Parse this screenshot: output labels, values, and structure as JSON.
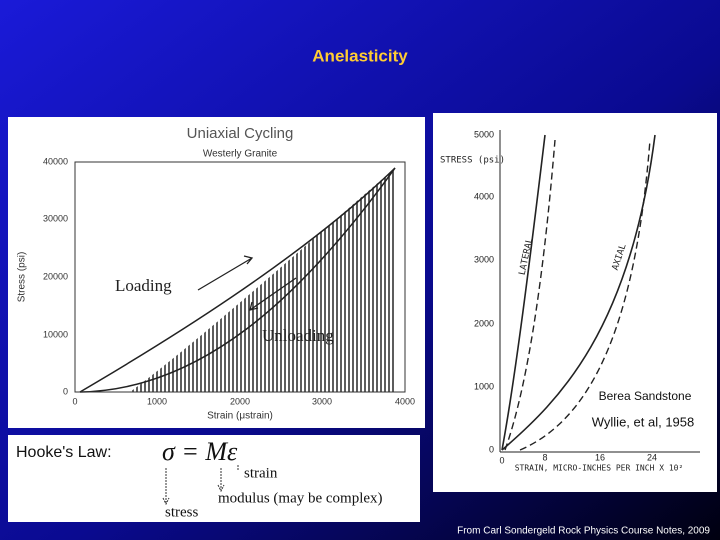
{
  "slide": {
    "title": "Anelasticity",
    "left_figure": {
      "title": "Uniaxial Cycling",
      "subtitle": "Westerly Granite",
      "y_label": "Stress (psi)",
      "x_label": "Strain (μstrain)",
      "y_ticks": [
        "0",
        "10000",
        "20000",
        "30000",
        "40000"
      ],
      "x_ticks": [
        "0",
        "1000",
        "2000",
        "3000",
        "4000"
      ],
      "loading": "Loading",
      "unloading": "Unloading"
    },
    "right_figure": {
      "y_label": "STRESS (psi)",
      "y_ticks": [
        "0",
        "1000",
        "2000",
        "3000",
        "4000",
        "5000"
      ],
      "x_ticks": [
        "0",
        "8",
        "16",
        "24"
      ],
      "x_label": "STRAIN, MICRO-INCHES PER INCH X 10²",
      "lateral": "LATERAL",
      "axial": "AXIAL",
      "rock": "Berea Sandstone",
      "source": "Wyllie, et al, 1958"
    },
    "hooke": {
      "label": "Hooke's Law:",
      "equation": "σ = Mε",
      "strain": "strain",
      "modulus": "modulus (may be complex)",
      "stress": "stress"
    },
    "footer": "From Carl Sondergeld Rock Physics Course Notes, 2009"
  }
}
